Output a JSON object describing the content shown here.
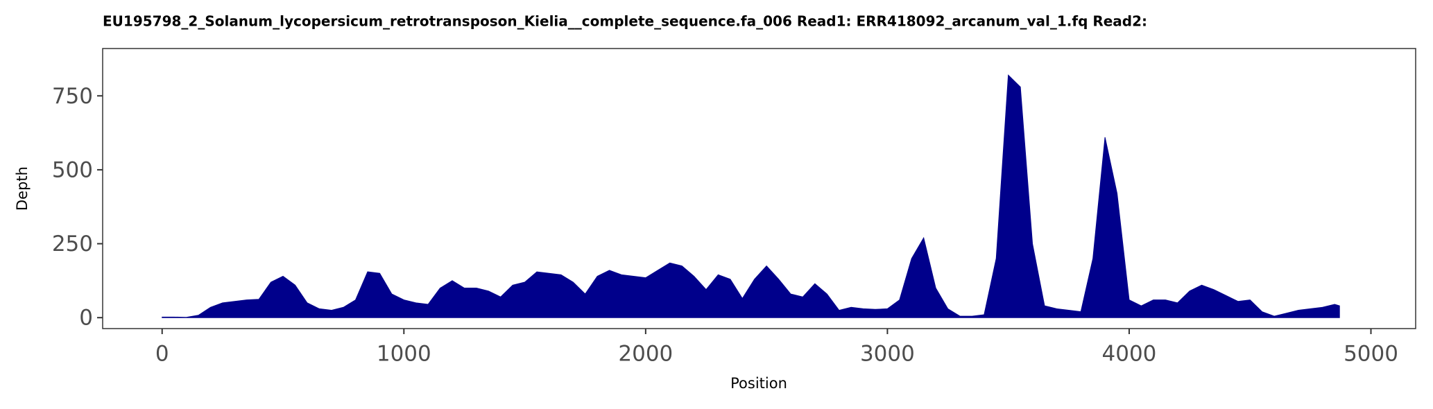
{
  "chart_data": {
    "type": "area",
    "title": "EU195798_2_Solanum_lycopersicum_retrotransposon_Kielia__complete_sequence.fa_006   Read1: ERR418092_arcanum_val_1.fq   Read2:",
    "x_label": "Position",
    "y_label": "Depth",
    "color": "#00008b",
    "x": [
      0,
      50,
      100,
      150,
      200,
      250,
      300,
      350,
      400,
      450,
      500,
      550,
      600,
      650,
      700,
      750,
      800,
      850,
      900,
      950,
      1000,
      1050,
      1100,
      1150,
      1200,
      1250,
      1300,
      1350,
      1400,
      1450,
      1500,
      1550,
      1600,
      1650,
      1700,
      1750,
      1800,
      1850,
      1900,
      1950,
      2000,
      2050,
      2100,
      2150,
      2200,
      2250,
      2300,
      2350,
      2400,
      2450,
      2500,
      2550,
      2600,
      2650,
      2700,
      2750,
      2800,
      2850,
      2900,
      2950,
      3000,
      3050,
      3100,
      3150,
      3200,
      3250,
      3300,
      3350,
      3400,
      3450,
      3500,
      3550,
      3600,
      3650,
      3700,
      3750,
      3800,
      3850,
      3900,
      3950,
      4000,
      4050,
      4100,
      4150,
      4200,
      4250,
      4300,
      4350,
      4400,
      4450,
      4500,
      4550,
      4600,
      4650,
      4700,
      4750,
      4800,
      4850,
      4870
    ],
    "values": [
      2,
      2,
      1,
      8,
      35,
      50,
      55,
      60,
      62,
      120,
      140,
      110,
      50,
      30,
      25,
      35,
      60,
      155,
      150,
      80,
      60,
      50,
      45,
      100,
      125,
      100,
      100,
      90,
      70,
      110,
      120,
      155,
      150,
      145,
      120,
      80,
      140,
      160,
      145,
      140,
      135,
      160,
      185,
      175,
      140,
      95,
      145,
      130,
      65,
      130,
      175,
      130,
      80,
      70,
      115,
      80,
      25,
      35,
      30,
      28,
      30,
      60,
      200,
      270,
      100,
      30,
      5,
      5,
      10,
      200,
      820,
      780,
      250,
      40,
      30,
      25,
      20,
      200,
      610,
      420,
      60,
      40,
      60,
      60,
      50,
      90,
      110,
      95,
      75,
      55,
      60,
      20,
      5,
      15,
      25,
      30,
      35,
      45,
      40
    ],
    "xlim": [
      -246,
      5185
    ],
    "ylim": [
      -37,
      910
    ],
    "xticks": [
      0,
      1000,
      2000,
      3000,
      4000,
      5000
    ],
    "yticks": [
      0,
      250,
      500,
      750
    ]
  }
}
